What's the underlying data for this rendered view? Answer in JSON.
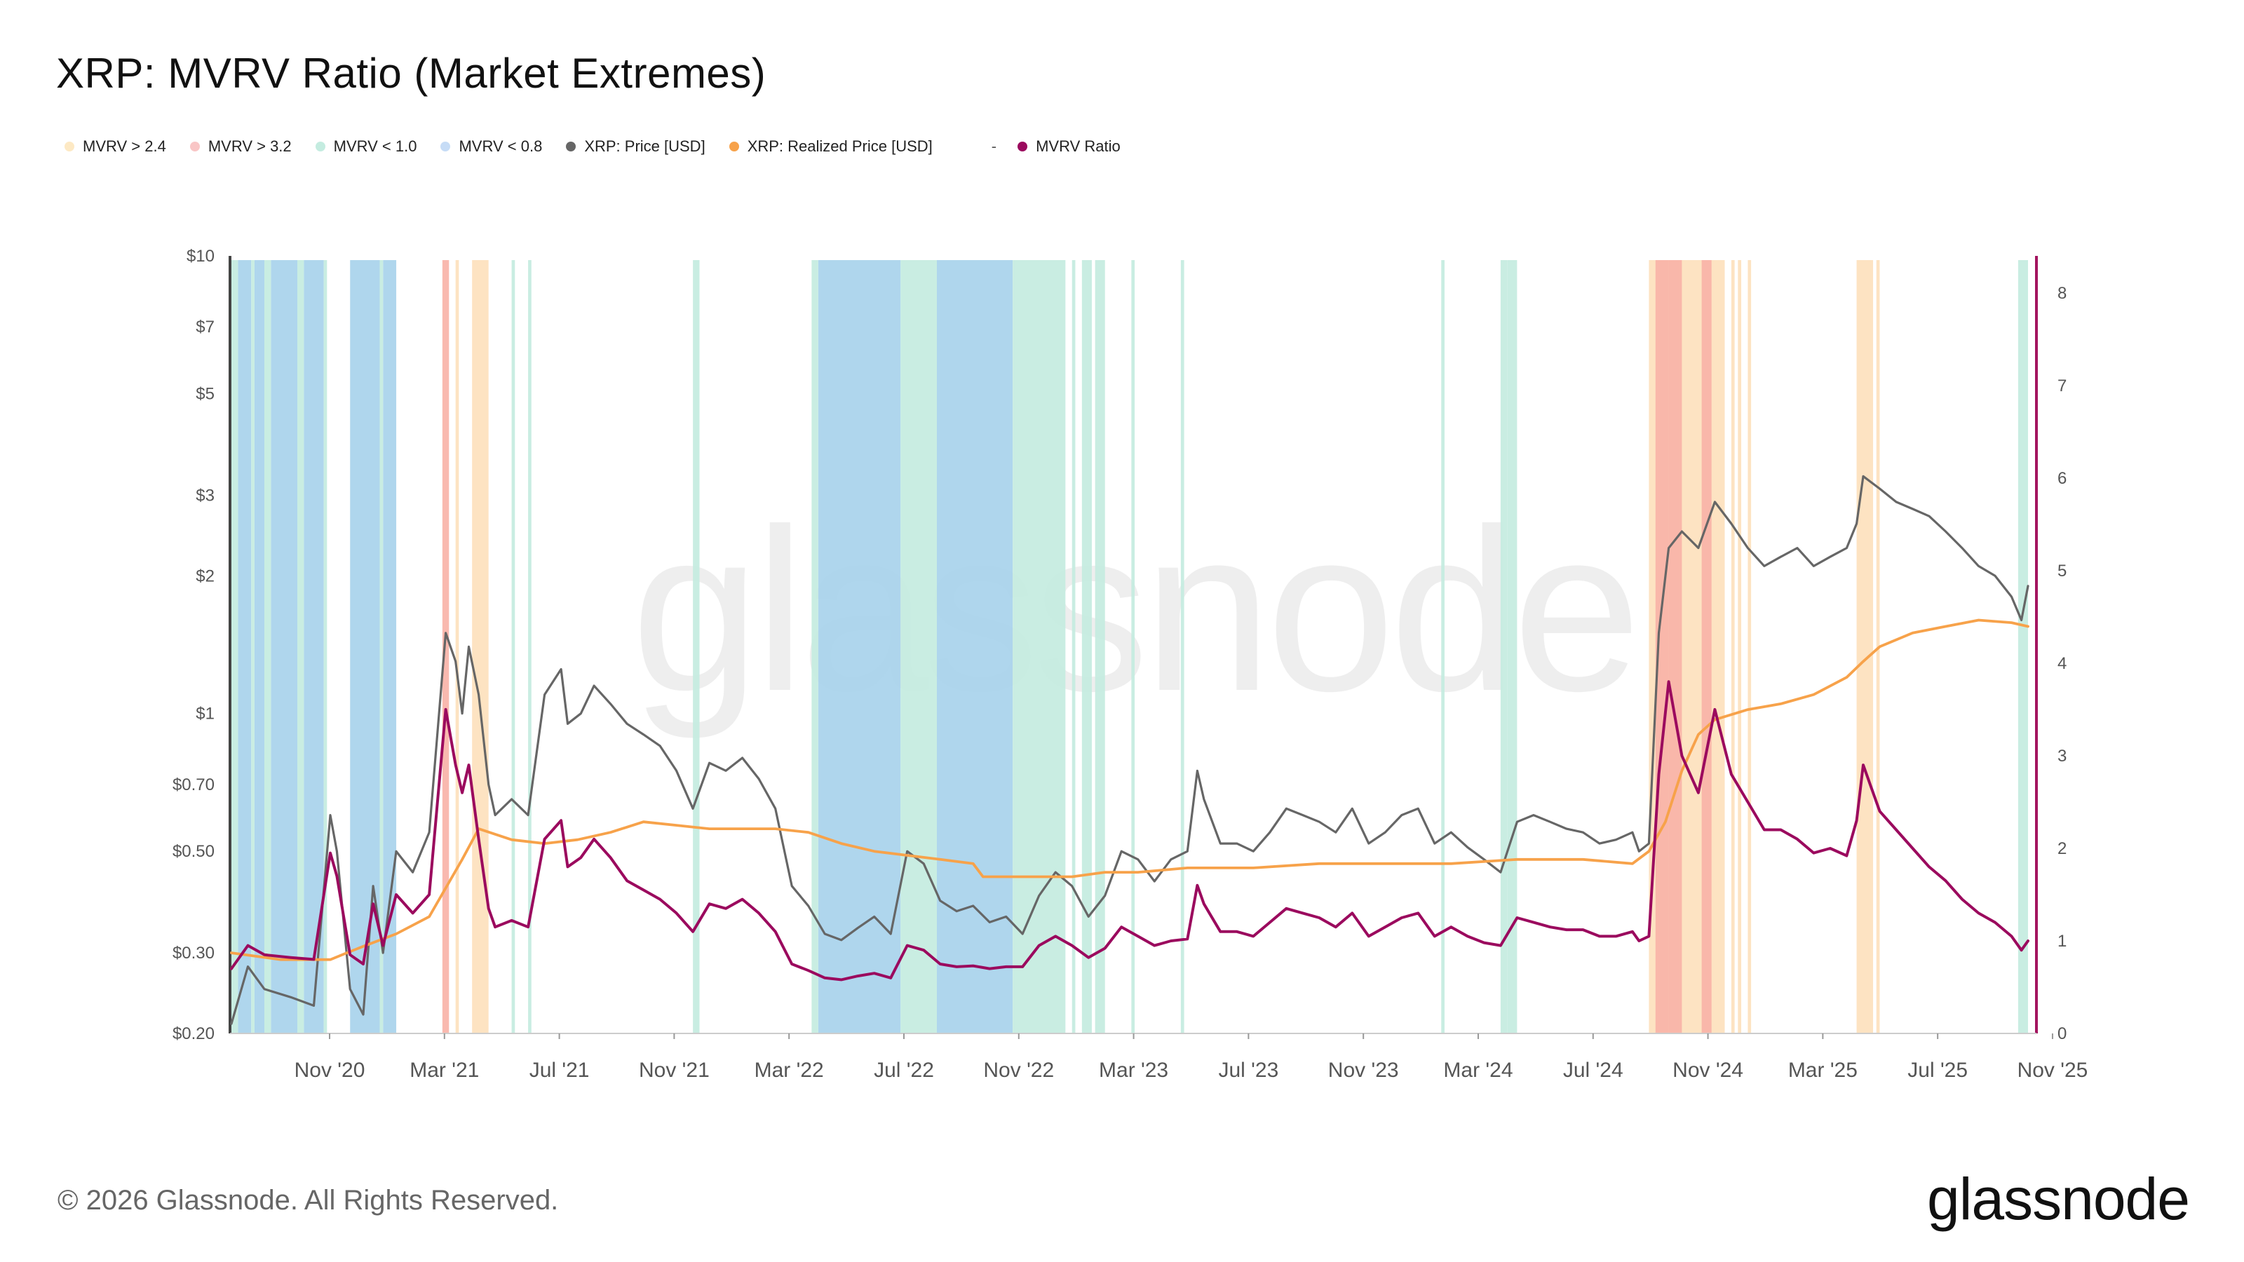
{
  "title": "XRP: MVRV Ratio (Market Extremes)",
  "legend": [
    {
      "label": "MVRV > 2.4",
      "color": "#fde9c4"
    },
    {
      "label": "MVRV > 3.2",
      "color": "#f9c6c6"
    },
    {
      "label": "MVRV < 1.0",
      "color": "#c4ece0"
    },
    {
      "label": "MVRV < 0.8",
      "color": "#c6dcf6"
    },
    {
      "label": "XRP: Price [USD]",
      "color": "#666666"
    },
    {
      "label": "XRP: Realized Price [USD]",
      "color": "#f7a24a"
    },
    {
      "label": "MVRV Ratio",
      "color": "#9b0a5e"
    }
  ],
  "legend_separator": "-",
  "watermark": "glassnode",
  "footer": "© 2026 Glassnode. All Rights Reserved.",
  "logo": "glassnode",
  "chart_data": {
    "type": "line",
    "title": "XRP: MVRV Ratio (Market Extremes)",
    "x_tick_labels": [
      "Nov '20",
      "Mar '21",
      "Jul '21",
      "Nov '21",
      "Mar '22",
      "Jul '22",
      "Nov '22",
      "Mar '23",
      "Jul '23",
      "Nov '23",
      "Mar '24",
      "Jul '24",
      "Nov '24",
      "Mar '25",
      "Jul '25",
      "Nov '25"
    ],
    "x_start": 2020.6,
    "x_end": 2026.05,
    "y_left": {
      "scale": "log",
      "range": [
        0.2,
        10
      ],
      "tick_values": [
        0.2,
        0.3,
        0.5,
        0.7,
        1,
        2,
        3,
        5,
        7,
        10
      ],
      "tick_labels": [
        "$0.20",
        "$0.30",
        "$0.50",
        "$0.70",
        "$1",
        "$2",
        "$3",
        "$5",
        "$7",
        "$10"
      ]
    },
    "y_right": {
      "scale": "linear",
      "range": [
        0,
        8.4
      ],
      "tick_values": [
        0,
        1,
        2,
        3,
        4,
        5,
        6,
        7,
        8
      ],
      "tick_labels": [
        "0",
        "1",
        "2",
        "3",
        "4",
        "5",
        "6",
        "7",
        "8"
      ]
    },
    "series": [
      {
        "name": "XRP: Price [USD]",
        "axis": "left",
        "color": "#666666",
        "x": [
          2020.6,
          2020.65,
          2020.7,
          2020.78,
          2020.85,
          2020.9,
          2020.92,
          2020.96,
          2021.0,
          2021.03,
          2021.06,
          2021.1,
          2021.15,
          2021.2,
          2021.25,
          2021.28,
          2021.3,
          2021.32,
          2021.35,
          2021.38,
          2021.4,
          2021.45,
          2021.5,
          2021.55,
          2021.6,
          2021.62,
          2021.66,
          2021.7,
          2021.75,
          2021.8,
          2021.85,
          2021.9,
          2021.95,
          2022.0,
          2022.05,
          2022.1,
          2022.15,
          2022.2,
          2022.25,
          2022.3,
          2022.35,
          2022.4,
          2022.45,
          2022.5,
          2022.55,
          2022.6,
          2022.65,
          2022.7,
          2022.75,
          2022.8,
          2022.85,
          2022.9,
          2022.95,
          2023.0,
          2023.05,
          2023.1,
          2023.15,
          2023.2,
          2023.25,
          2023.3,
          2023.35,
          2023.4,
          2023.45,
          2023.5,
          2023.53,
          2023.55,
          2023.6,
          2023.65,
          2023.7,
          2023.75,
          2023.8,
          2023.85,
          2023.9,
          2023.95,
          2024.0,
          2024.05,
          2024.1,
          2024.15,
          2024.2,
          2024.25,
          2024.3,
          2024.35,
          2024.4,
          2024.45,
          2024.5,
          2024.55,
          2024.6,
          2024.65,
          2024.7,
          2024.75,
          2024.8,
          2024.85,
          2024.87,
          2024.9,
          2024.93,
          2024.96,
          2025.0,
          2025.05,
          2025.1,
          2025.15,
          2025.2,
          2025.25,
          2025.3,
          2025.35,
          2025.4,
          2025.45,
          2025.5,
          2025.53,
          2025.55,
          2025.6,
          2025.65,
          2025.7,
          2025.75,
          2025.8,
          2025.85,
          2025.9,
          2025.95,
          2026.0,
          2026.03,
          2026.05
        ],
        "y": [
          0.21,
          0.28,
          0.25,
          0.24,
          0.23,
          0.6,
          0.5,
          0.25,
          0.22,
          0.42,
          0.3,
          0.5,
          0.45,
          0.55,
          1.5,
          1.3,
          1.0,
          1.4,
          1.1,
          0.7,
          0.6,
          0.65,
          0.6,
          1.1,
          1.25,
          0.95,
          1.0,
          1.15,
          1.05,
          0.95,
          0.9,
          0.85,
          0.75,
          0.62,
          0.78,
          0.75,
          0.8,
          0.72,
          0.62,
          0.42,
          0.38,
          0.33,
          0.32,
          0.34,
          0.36,
          0.33,
          0.5,
          0.47,
          0.39,
          0.37,
          0.38,
          0.35,
          0.36,
          0.33,
          0.4,
          0.45,
          0.42,
          0.36,
          0.4,
          0.5,
          0.48,
          0.43,
          0.48,
          0.5,
          0.75,
          0.65,
          0.52,
          0.52,
          0.5,
          0.55,
          0.62,
          0.6,
          0.58,
          0.55,
          0.62,
          0.52,
          0.55,
          0.6,
          0.62,
          0.52,
          0.55,
          0.51,
          0.48,
          0.45,
          0.58,
          0.6,
          0.58,
          0.56,
          0.55,
          0.52,
          0.53,
          0.55,
          0.5,
          0.52,
          1.5,
          2.3,
          2.5,
          2.3,
          2.9,
          2.6,
          2.3,
          2.1,
          2.2,
          2.3,
          2.1,
          2.2,
          2.3,
          2.6,
          3.3,
          3.1,
          2.9,
          2.8,
          2.7,
          2.5,
          2.3,
          2.1,
          2.0,
          1.8,
          1.6,
          1.9
        ],
        "width": 3.2
      },
      {
        "name": "XRP: Realized Price [USD]",
        "axis": "left",
        "color": "#f7a24a",
        "x": [
          2020.6,
          2020.75,
          2020.9,
          2020.95,
          2021.0,
          2021.1,
          2021.2,
          2021.3,
          2021.35,
          2021.45,
          2021.55,
          2021.65,
          2021.75,
          2021.85,
          2021.95,
          2022.05,
          2022.15,
          2022.25,
          2022.35,
          2022.45,
          2022.55,
          2022.65,
          2022.75,
          2022.85,
          2022.88,
          2022.95,
          2023.05,
          2023.15,
          2023.25,
          2023.35,
          2023.5,
          2023.7,
          2023.9,
          2024.1,
          2024.3,
          2024.5,
          2024.7,
          2024.85,
          2024.9,
          2024.95,
          2025.0,
          2025.05,
          2025.1,
          2025.2,
          2025.3,
          2025.4,
          2025.5,
          2025.55,
          2025.6,
          2025.7,
          2025.8,
          2025.9,
          2026.0,
          2026.05
        ],
        "y": [
          0.3,
          0.29,
          0.29,
          0.3,
          0.31,
          0.33,
          0.36,
          0.48,
          0.56,
          0.53,
          0.52,
          0.53,
          0.55,
          0.58,
          0.57,
          0.56,
          0.56,
          0.56,
          0.55,
          0.52,
          0.5,
          0.49,
          0.48,
          0.47,
          0.44,
          0.44,
          0.44,
          0.44,
          0.45,
          0.45,
          0.46,
          0.46,
          0.47,
          0.47,
          0.47,
          0.48,
          0.48,
          0.47,
          0.5,
          0.58,
          0.75,
          0.9,
          0.97,
          1.02,
          1.05,
          1.1,
          1.2,
          1.3,
          1.4,
          1.5,
          1.55,
          1.6,
          1.58,
          1.55
        ],
        "width": 3.8
      },
      {
        "name": "MVRV Ratio",
        "axis": "right",
        "color": "#9b0a5e",
        "x": [
          2020.6,
          2020.65,
          2020.7,
          2020.78,
          2020.85,
          2020.9,
          2020.92,
          2020.96,
          2021.0,
          2021.03,
          2021.06,
          2021.1,
          2021.15,
          2021.2,
          2021.25,
          2021.28,
          2021.3,
          2021.32,
          2021.35,
          2021.38,
          2021.4,
          2021.45,
          2021.5,
          2021.55,
          2021.6,
          2021.62,
          2021.66,
          2021.7,
          2021.75,
          2021.8,
          2021.85,
          2021.9,
          2021.95,
          2022.0,
          2022.05,
          2022.1,
          2022.15,
          2022.2,
          2022.25,
          2022.3,
          2022.35,
          2022.4,
          2022.45,
          2022.5,
          2022.55,
          2022.6,
          2022.65,
          2022.7,
          2022.75,
          2022.8,
          2022.85,
          2022.9,
          2022.95,
          2023.0,
          2023.05,
          2023.1,
          2023.15,
          2023.2,
          2023.25,
          2023.3,
          2023.35,
          2023.4,
          2023.45,
          2023.5,
          2023.53,
          2023.55,
          2023.6,
          2023.65,
          2023.7,
          2023.75,
          2023.8,
          2023.85,
          2023.9,
          2023.95,
          2024.0,
          2024.05,
          2024.1,
          2024.15,
          2024.2,
          2024.25,
          2024.3,
          2024.35,
          2024.4,
          2024.45,
          2024.5,
          2024.55,
          2024.6,
          2024.65,
          2024.7,
          2024.75,
          2024.8,
          2024.85,
          2024.87,
          2024.9,
          2024.93,
          2024.96,
          2025.0,
          2025.05,
          2025.1,
          2025.15,
          2025.2,
          2025.25,
          2025.3,
          2025.35,
          2025.4,
          2025.45,
          2025.5,
          2025.53,
          2025.55,
          2025.6,
          2025.65,
          2025.7,
          2025.75,
          2025.8,
          2025.85,
          2025.9,
          2025.95,
          2026.0,
          2026.03,
          2026.05
        ],
        "y": [
          0.7,
          0.95,
          0.85,
          0.82,
          0.8,
          1.95,
          1.7,
          0.85,
          0.75,
          1.4,
          0.95,
          1.5,
          1.3,
          1.5,
          3.5,
          2.9,
          2.6,
          2.9,
          2.1,
          1.35,
          1.15,
          1.22,
          1.15,
          2.1,
          2.3,
          1.8,
          1.9,
          2.1,
          1.9,
          1.65,
          1.55,
          1.45,
          1.3,
          1.1,
          1.4,
          1.35,
          1.45,
          1.3,
          1.1,
          0.75,
          0.68,
          0.6,
          0.58,
          0.62,
          0.65,
          0.6,
          0.95,
          0.9,
          0.75,
          0.72,
          0.73,
          0.7,
          0.72,
          0.72,
          0.95,
          1.05,
          0.95,
          0.82,
          0.92,
          1.15,
          1.05,
          0.95,
          1.0,
          1.02,
          1.6,
          1.4,
          1.1,
          1.1,
          1.05,
          1.2,
          1.35,
          1.3,
          1.25,
          1.15,
          1.3,
          1.05,
          1.15,
          1.25,
          1.3,
          1.05,
          1.15,
          1.05,
          0.98,
          0.95,
          1.25,
          1.2,
          1.15,
          1.12,
          1.12,
          1.05,
          1.05,
          1.1,
          1.0,
          1.05,
          2.8,
          3.8,
          3.0,
          2.6,
          3.5,
          2.8,
          2.5,
          2.2,
          2.2,
          2.1,
          1.95,
          2.0,
          1.92,
          2.3,
          2.9,
          2.4,
          2.2,
          2.0,
          1.8,
          1.65,
          1.45,
          1.3,
          1.2,
          1.05,
          0.9,
          1.0
        ],
        "width": 4.0
      }
    ],
    "bands": [
      {
        "condition": "MVRV < 0.8",
        "color": "#a8d2ec",
        "ranges": [
          [
            2020.62,
            2020.66
          ],
          [
            2020.67,
            2020.7
          ],
          [
            2020.72,
            2020.8
          ],
          [
            2020.82,
            2020.88
          ],
          [
            2020.96,
            2021.05
          ],
          [
            2021.06,
            2021.1
          ],
          [
            2022.38,
            2022.63
          ],
          [
            2022.74,
            2022.97
          ]
        ]
      },
      {
        "condition": "MVRV < 1.0",
        "color": "#c4ece0",
        "ranges": [
          [
            2020.6,
            2020.62
          ],
          [
            2020.66,
            2020.67
          ],
          [
            2020.7,
            2020.72
          ],
          [
            2020.8,
            2020.82
          ],
          [
            2020.88,
            2020.89
          ],
          [
            2021.05,
            2021.06
          ],
          [
            2021.45,
            2021.46
          ],
          [
            2021.5,
            2021.51
          ],
          [
            2022.0,
            2022.02
          ],
          [
            2022.36,
            2022.38
          ],
          [
            2022.63,
            2022.74
          ],
          [
            2022.97,
            2023.13
          ],
          [
            2023.15,
            2023.16
          ],
          [
            2023.18,
            2023.21
          ],
          [
            2023.22,
            2023.25
          ],
          [
            2023.33,
            2023.34
          ],
          [
            2023.48,
            2023.49
          ],
          [
            2024.27,
            2024.28
          ],
          [
            2024.45,
            2024.47
          ],
          [
            2024.47,
            2024.5
          ],
          [
            2026.02,
            2026.05
          ]
        ]
      },
      {
        "condition": "MVRV > 2.4",
        "color": "#fde1bd",
        "ranges": [
          [
            2021.28,
            2021.29
          ],
          [
            2021.33,
            2021.38
          ],
          [
            2024.9,
            2025.13
          ],
          [
            2025.15,
            2025.16
          ],
          [
            2025.17,
            2025.18
          ],
          [
            2025.2,
            2025.21
          ],
          [
            2025.53,
            2025.58
          ],
          [
            2025.59,
            2025.6
          ]
        ]
      },
      {
        "condition": "MVRV > 3.2",
        "color": "#f8b3a8",
        "ranges": [
          [
            2021.24,
            2021.26
          ],
          [
            2024.92,
            2024.96
          ],
          [
            2024.96,
            2025.0
          ],
          [
            2025.06,
            2025.09
          ]
        ]
      }
    ]
  }
}
